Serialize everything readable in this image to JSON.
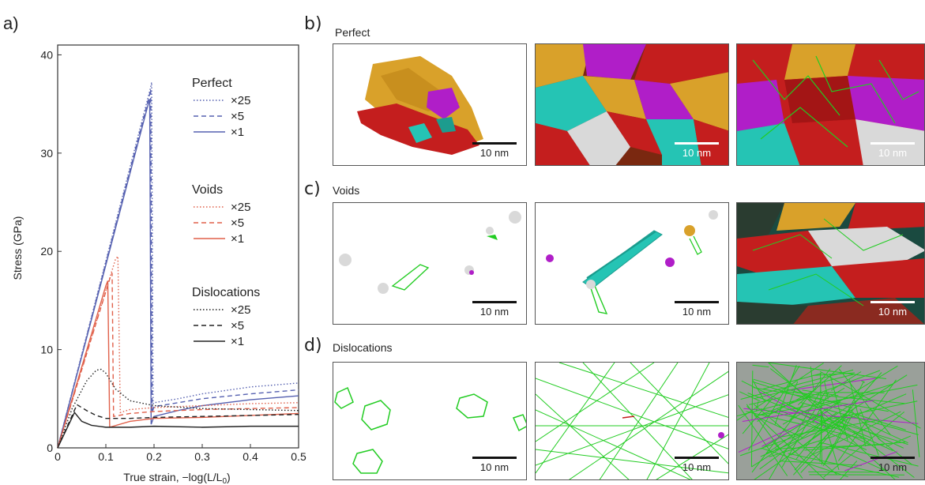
{
  "panels": {
    "a": "a)",
    "b": "b)",
    "c": "c)",
    "d": "d)"
  },
  "rows": {
    "perfect": "Perfect",
    "voids": "Voids",
    "dislocations": "Dislocations"
  },
  "scale_bar_label": "10 nm",
  "colors": {
    "perfect": "#5560b0",
    "voids": "#e0604a",
    "dislocations": "#222222",
    "dislocation_lines": "#22cc22",
    "grain_red": "#c41e1e",
    "grain_gold": "#d9a12a",
    "grain_magenta": "#b01ec8",
    "grain_cyan": "#25c4b4",
    "grain_white": "#d9d9d9"
  },
  "chart_data": {
    "type": "line",
    "xlabel": "True strain, −log(L/L",
    "xlabel_sub": "0",
    "xlabel_end": ")",
    "ylabel": "Stress (GPa)",
    "xlim": [
      0,
      0.5
    ],
    "ylim": [
      0,
      41
    ],
    "xticks": [
      "0",
      "0.1",
      "0.2",
      "0.3",
      "0.4",
      "0.5"
    ],
    "yticks": [
      "0",
      "10",
      "20",
      "30",
      "40"
    ],
    "legend_groups": [
      {
        "title": "Perfect",
        "entries": [
          "×25",
          "×5",
          "×1"
        ]
      },
      {
        "title": "Voids",
        "entries": [
          "×25",
          "×5",
          "×1"
        ]
      },
      {
        "title": "Dislocations",
        "entries": [
          "×25",
          "×5",
          "×1"
        ]
      }
    ],
    "series": [
      {
        "name": "Perfect ×25",
        "group": "perfect",
        "style": "dotted",
        "x": [
          0,
          0.192,
          0.195,
          0.198,
          0.2,
          0.25,
          0.3,
          0.4,
          0.5
        ],
        "y": [
          0,
          36.5,
          37.2,
          4.5,
          4.6,
          5.0,
          5.5,
          6.2,
          6.6
        ]
      },
      {
        "name": "Perfect ×5",
        "group": "perfect",
        "style": "dashed",
        "x": [
          0,
          0.19,
          0.193,
          0.196,
          0.2,
          0.25,
          0.3,
          0.4,
          0.5
        ],
        "y": [
          0,
          35.8,
          36.5,
          3.6,
          4.2,
          4.6,
          5.0,
          5.5,
          5.9
        ]
      },
      {
        "name": "Perfect ×1",
        "group": "perfect",
        "style": "solid",
        "x": [
          0,
          0.188,
          0.191,
          0.194,
          0.2,
          0.25,
          0.3,
          0.4,
          0.5
        ],
        "y": [
          0,
          35.0,
          35.5,
          2.4,
          3.2,
          3.8,
          4.3,
          4.9,
          5.3
        ]
      },
      {
        "name": "Voids ×25",
        "group": "voids",
        "style": "dotted",
        "x": [
          0,
          0.12,
          0.125,
          0.13,
          0.15,
          0.2,
          0.3,
          0.4,
          0.5
        ],
        "y": [
          0,
          19.2,
          19.5,
          3.6,
          3.9,
          4.1,
          4.3,
          4.5,
          4.6
        ]
      },
      {
        "name": "Voids ×5",
        "group": "voids",
        "style": "dashed",
        "x": [
          0,
          0.11,
          0.113,
          0.116,
          0.15,
          0.2,
          0.3,
          0.4,
          0.5
        ],
        "y": [
          0,
          17.5,
          17.8,
          3.2,
          3.5,
          3.7,
          3.9,
          4.0,
          4.1
        ]
      },
      {
        "name": "Voids ×1",
        "group": "voids",
        "style": "solid",
        "x": [
          0,
          0.1,
          0.104,
          0.108,
          0.15,
          0.2,
          0.3,
          0.4,
          0.5
        ],
        "y": [
          0,
          16.5,
          17.0,
          2.1,
          2.7,
          3.0,
          3.1,
          3.3,
          3.5
        ]
      },
      {
        "name": "Dislocations ×25",
        "group": "dislocations",
        "style": "dotted",
        "x": [
          0,
          0.03,
          0.06,
          0.08,
          0.09,
          0.1,
          0.12,
          0.15,
          0.2,
          0.3,
          0.4,
          0.5
        ],
        "y": [
          0,
          4.0,
          6.8,
          7.9,
          8.0,
          7.6,
          6.0,
          4.8,
          4.3,
          4.0,
          3.9,
          3.8
        ]
      },
      {
        "name": "Dislocations ×5",
        "group": "dislocations",
        "style": "dashed",
        "x": [
          0,
          0.04,
          0.06,
          0.08,
          0.1,
          0.15,
          0.2,
          0.3,
          0.4,
          0.5
        ],
        "y": [
          0,
          4.4,
          3.8,
          3.3,
          3.0,
          3.0,
          3.1,
          3.2,
          3.3,
          3.4
        ]
      },
      {
        "name": "Dislocations ×1",
        "group": "dislocations",
        "style": "solid",
        "x": [
          0,
          0.035,
          0.05,
          0.07,
          0.1,
          0.15,
          0.2,
          0.3,
          0.4,
          0.5
        ],
        "y": [
          0,
          3.6,
          2.7,
          2.3,
          2.1,
          2.1,
          2.2,
          2.1,
          2.2,
          2.2
        ]
      }
    ]
  }
}
